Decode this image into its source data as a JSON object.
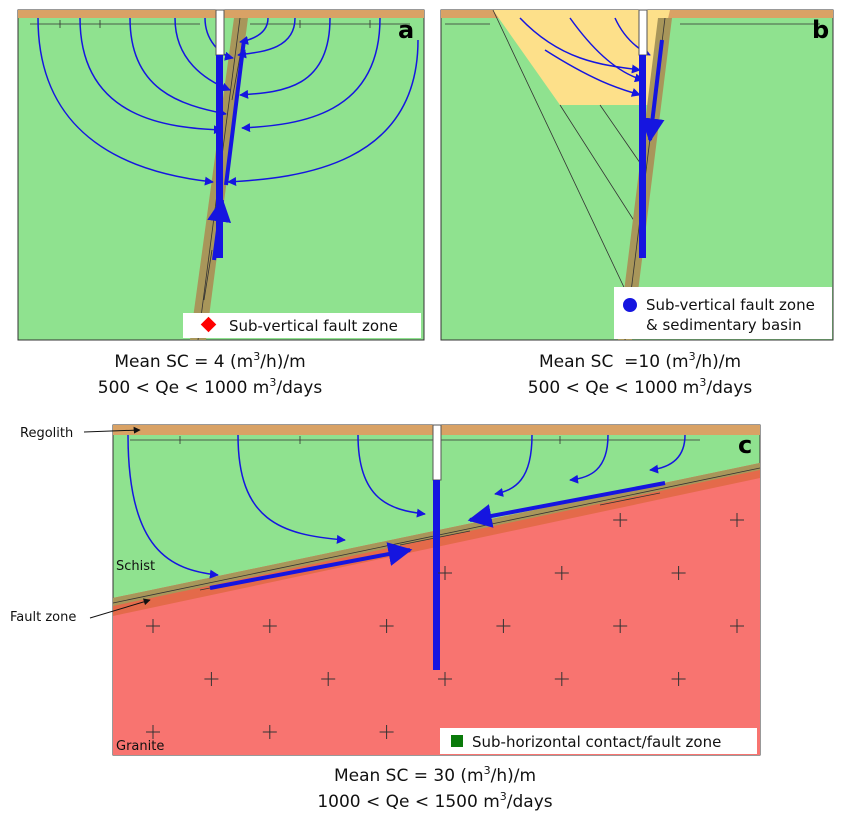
{
  "panels": [
    {
      "letter": "a",
      "legend": [
        "Sub-vertical fault zone"
      ],
      "caption": [
        [
          "Mean SC = 4 (m",
          "3",
          "/h)/m"
        ],
        [
          "500 < Qe < 1000 m",
          "3",
          "/days"
        ]
      ]
    },
    {
      "letter": "b",
      "legend": [
        "Sub-vertical fault zone",
        "& sedimentary basin"
      ],
      "caption": [
        [
          "Mean SC  =10 (m",
          "3",
          "/h)/m"
        ],
        [
          "500 < Qe < 1000 m",
          "3",
          "/days"
        ]
      ]
    },
    {
      "letter": "c",
      "legend": [
        "Sub-horizontal contact/fault zone"
      ],
      "labels": [
        "Regolith",
        "Schist",
        "Fault zone",
        "Granite"
      ],
      "caption": [
        [
          "Mean SC = 30 (m",
          "3",
          "/h)/m"
        ],
        [
          "1000 < Qe < 1500 m",
          "3",
          "/days"
        ]
      ]
    }
  ]
}
